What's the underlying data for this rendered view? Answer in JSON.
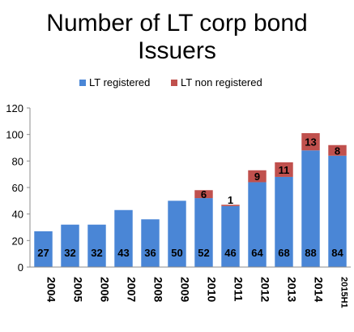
{
  "chart_data": {
    "type": "bar",
    "stacked": true,
    "title": "Number of LT corp bond Issuers",
    "title_lines": [
      "Number of LT corp bond",
      "Issuers"
    ],
    "categories": [
      "2004",
      "2005",
      "2006",
      "2007",
      "2008",
      "2009",
      "2010",
      "2011",
      "2012",
      "2013",
      "2014",
      "2015H1"
    ],
    "series": [
      {
        "name": "LT registered",
        "color": "#4a86d6",
        "values": [
          27,
          32,
          32,
          43,
          36,
          50,
          52,
          46,
          64,
          68,
          88,
          84
        ],
        "labels": [
          "27",
          "32",
          "32",
          "43",
          "36",
          "50",
          "52",
          "46",
          "64",
          "68",
          "88",
          "84"
        ]
      },
      {
        "name": "LT non registered",
        "color": "#c0504d",
        "values": [
          0,
          0,
          0,
          0,
          0,
          0,
          6,
          1,
          9,
          11,
          13,
          8
        ],
        "labels": [
          "",
          "",
          "",
          "",
          "",
          "",
          "6",
          "1",
          "9",
          "11",
          "13",
          "8"
        ]
      }
    ],
    "ylim": [
      0,
      120
    ],
    "yticks": [
      "0",
      "20",
      "40",
      "60",
      "80",
      "100",
      "120"
    ],
    "xlabel": "",
    "ylabel": "",
    "grid": false,
    "legend_position": "top"
  }
}
